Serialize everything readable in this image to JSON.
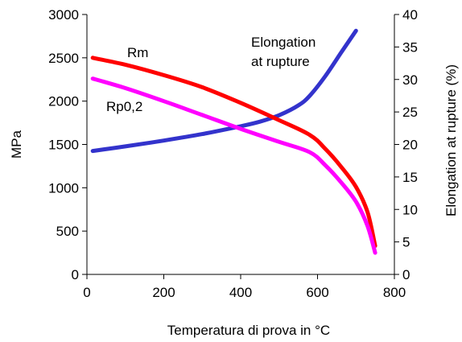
{
  "chart_data": {
    "type": "line",
    "xlabel": "Temperatura di prova in °C",
    "ylabel": "MPa",
    "y2label": "Elongation at rupture (%)",
    "xlim": [
      0,
      800
    ],
    "ylim": [
      0,
      3000
    ],
    "y2lim": [
      0,
      40
    ],
    "x_ticks": [
      0,
      200,
      400,
      600,
      800
    ],
    "y_ticks": [
      0,
      500,
      1000,
      1500,
      2000,
      2500,
      3000
    ],
    "y2_ticks": [
      0,
      5,
      10,
      15,
      20,
      25,
      30,
      35,
      40
    ],
    "grid": false,
    "legend": "none",
    "series": [
      {
        "name": "Rm",
        "axis": "left",
        "color": "#ff0000",
        "label_lines": [
          "Rm"
        ],
        "x": [
          15,
          100,
          200,
          300,
          400,
          500,
          580,
          620,
          660,
          700,
          730,
          750
        ],
        "y": [
          2500,
          2420,
          2300,
          2160,
          1980,
          1780,
          1610,
          1450,
          1250,
          1010,
          720,
          330
        ]
      },
      {
        "name": "Rp0,2",
        "axis": "left",
        "color": "#ff00ff",
        "label_lines": [
          "Rp0,2"
        ],
        "x": [
          15,
          100,
          200,
          300,
          400,
          500,
          580,
          620,
          660,
          700,
          730,
          750
        ],
        "y": [
          2260,
          2150,
          2000,
          1840,
          1680,
          1530,
          1410,
          1260,
          1070,
          840,
          560,
          250
        ]
      },
      {
        "name": "Elongation at rupture",
        "axis": "right",
        "color": "#3333cc",
        "label_lines": [
          "Elongation",
          "at rupture"
        ],
        "x": [
          15,
          100,
          200,
          300,
          400,
          450,
          500,
          550,
          580,
          620,
          660,
          700
        ],
        "y": [
          19,
          19.7,
          20.6,
          21.6,
          22.8,
          23.5,
          24.5,
          26,
          27.5,
          30.5,
          34,
          37.5
        ]
      }
    ]
  }
}
